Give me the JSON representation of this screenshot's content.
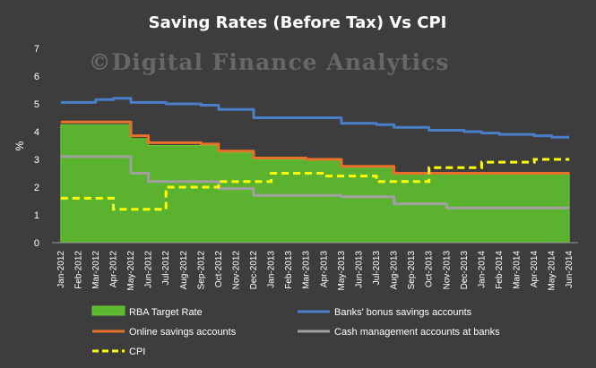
{
  "chart_data": {
    "type": "line",
    "title": "Saving Rates (Before Tax) Vs CPI",
    "watermark": "©Digital Finance Analytics",
    "ylabel": "%",
    "xlabel": "",
    "ylim": [
      0,
      7
    ],
    "yticks": [
      "0",
      "1",
      "2",
      "3",
      "4",
      "5",
      "6",
      "7"
    ],
    "categories": [
      "Jan-2012",
      "Feb-2012",
      "Mar-2012",
      "Apr-2012",
      "May-2012",
      "Jun-2012",
      "Jul-2012",
      "Aug-2012",
      "Sep-2012",
      "Oct-2012",
      "Nov-2012",
      "Dec-2012",
      "Jan-2013",
      "Feb-2013",
      "Mar-2013",
      "Apr-2013",
      "May-2013",
      "Jun-2013",
      "Jul-2013",
      "Aug-2013",
      "Sep-2013",
      "Oct-2013",
      "Nov-2013",
      "Dec-2013",
      "Jan-2014",
      "Feb-2014",
      "Mar-2014",
      "Apr-2014",
      "May-2014",
      "Jun-2014"
    ],
    "series": [
      {
        "name": "RBA Target Rate",
        "kind": "area",
        "color": "#5cb82e",
        "values": [
          4.25,
          4.25,
          4.25,
          4.25,
          3.75,
          3.5,
          3.5,
          3.5,
          3.5,
          3.25,
          3.25,
          3.0,
          3.0,
          3.0,
          3.0,
          3.0,
          2.75,
          2.75,
          2.75,
          2.5,
          2.5,
          2.5,
          2.5,
          2.5,
          2.5,
          2.5,
          2.5,
          2.5,
          2.5,
          2.5
        ]
      },
      {
        "name": "Banks' bonus savings accounts",
        "kind": "line",
        "color": "#4a7ec8",
        "values": [
          5.05,
          5.05,
          5.15,
          5.2,
          5.05,
          5.05,
          5.0,
          5.0,
          4.95,
          4.8,
          4.8,
          4.5,
          4.5,
          4.5,
          4.5,
          4.5,
          4.3,
          4.3,
          4.25,
          4.15,
          4.15,
          4.05,
          4.05,
          4.0,
          3.95,
          3.9,
          3.9,
          3.85,
          3.8,
          3.8
        ]
      },
      {
        "name": "Online savings accounts",
        "kind": "line",
        "color": "#e8722a",
        "values": [
          4.35,
          4.35,
          4.35,
          4.35,
          3.85,
          3.6,
          3.6,
          3.6,
          3.55,
          3.3,
          3.3,
          3.05,
          3.05,
          3.05,
          3.0,
          3.0,
          2.75,
          2.75,
          2.75,
          2.5,
          2.5,
          2.5,
          2.5,
          2.5,
          2.5,
          2.5,
          2.5,
          2.5,
          2.5,
          2.5
        ]
      },
      {
        "name": "Cash management accounts at banks",
        "kind": "line",
        "color": "#a0a0a0",
        "values": [
          3.1,
          3.1,
          3.1,
          3.1,
          2.5,
          2.2,
          2.2,
          2.2,
          2.2,
          1.95,
          1.95,
          1.7,
          1.7,
          1.7,
          1.7,
          1.7,
          1.65,
          1.65,
          1.65,
          1.4,
          1.4,
          1.4,
          1.25,
          1.25,
          1.25,
          1.25,
          1.25,
          1.25,
          1.25,
          1.25
        ]
      },
      {
        "name": "CPI",
        "kind": "dashed",
        "color": "#ffff00",
        "values": [
          1.6,
          1.6,
          1.6,
          1.2,
          1.2,
          1.2,
          2.0,
          2.0,
          2.0,
          2.2,
          2.2,
          2.2,
          2.5,
          2.5,
          2.5,
          2.4,
          2.4,
          2.4,
          2.2,
          2.2,
          2.2,
          2.7,
          2.7,
          2.7,
          2.9,
          2.9,
          2.9,
          3.0,
          3.0,
          3.0
        ]
      }
    ],
    "grid": false,
    "legend_position": "bottom"
  }
}
